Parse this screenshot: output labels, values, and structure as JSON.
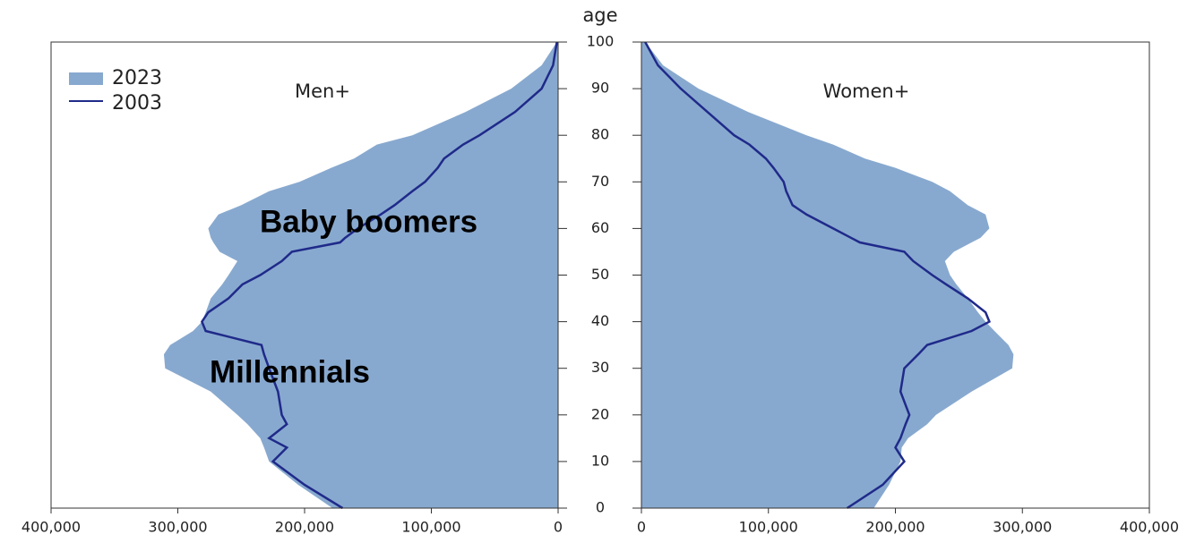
{
  "chart_data": {
    "type": "pyramid",
    "y_label": "age",
    "ylim": [
      0,
      100
    ],
    "yticks": [
      0,
      10,
      20,
      30,
      40,
      50,
      60,
      70,
      80,
      90,
      100
    ],
    "x": [
      0,
      5,
      10,
      13,
      15,
      18,
      20,
      25,
      30,
      33,
      35,
      38,
      40,
      42,
      45,
      48,
      50,
      53,
      55,
      57,
      58,
      60,
      63,
      65,
      68,
      70,
      73,
      75,
      78,
      80,
      85,
      90,
      95,
      100
    ],
    "annotations": [
      "Baby boomers",
      "Millennials"
    ],
    "panels": [
      {
        "title": "Men+",
        "direction": "left",
        "xlim": [
          0,
          400000
        ],
        "xticks": [
          0,
          {
            "value": 100000,
            "label": "100,000"
          },
          {
            "value": 200000,
            "label": "200,000"
          },
          {
            "value": 300000,
            "label": "300,000"
          },
          {
            "value": 400000,
            "label": "400,000"
          }
        ],
        "series": [
          {
            "name": "2023",
            "kind": "area",
            "color": "#88a9cf",
            "values": [
              178000,
              205000,
              228000,
              232000,
              235000,
              245000,
              253000,
              274000,
              310000,
              311000,
              306000,
              288000,
              281000,
              278000,
              274000,
              265000,
              260000,
              253000,
              267000,
              272000,
              274000,
              276000,
              268000,
              250000,
              228000,
              204000,
              179000,
              161000,
              143000,
              115000,
              73000,
              37000,
              13000,
              1000
            ]
          },
          {
            "name": "2003",
            "kind": "line",
            "color": "#1f2a8a",
            "values": [
              170000,
              200000,
              225000,
              214000,
              228000,
              214000,
              218000,
              221000,
              228000,
              232000,
              234000,
              278000,
              281000,
              276000,
              260000,
              249000,
              235000,
              218000,
              210000,
              172000,
              168000,
              158000,
              140000,
              129000,
              115000,
              105000,
              95000,
              90000,
              75000,
              62000,
              34000,
              13000,
              4000,
              1000
            ]
          }
        ]
      },
      {
        "title": "Women+",
        "direction": "right",
        "xlim": [
          0,
          400000
        ],
        "xticks": [
          0,
          {
            "value": 100000,
            "label": "100,000"
          },
          {
            "value": 200000,
            "label": "200,000"
          },
          {
            "value": 300000,
            "label": "300,000"
          },
          {
            "value": 400000,
            "label": "400,000"
          }
        ],
        "series": [
          {
            "name": "2023",
            "kind": "area",
            "color": "#88a9cf",
            "values": [
              183000,
              195000,
              204000,
              205000,
              210000,
              225000,
              232000,
              260000,
              292000,
              293000,
              289000,
              278000,
              271000,
              265000,
              257000,
              248000,
              243000,
              239000,
              246000,
              260000,
              267000,
              274000,
              271000,
              257000,
              243000,
              229000,
              200000,
              176000,
              151000,
              130000,
              84000,
              45000,
              17000,
              3000
            ]
          },
          {
            "name": "2003",
            "kind": "line",
            "color": "#1f2a8a",
            "values": [
              162000,
              190000,
              207000,
              200000,
              204000,
              208000,
              211000,
              204000,
              207000,
              218000,
              225000,
              260000,
              274000,
              271000,
              257000,
              240000,
              229000,
              214000,
              207000,
              172000,
              165000,
              151000,
              130000,
              119000,
              114000,
              112000,
              104000,
              98000,
              85000,
              73000,
              52000,
              31000,
              13000,
              3000
            ]
          }
        ]
      }
    ]
  }
}
